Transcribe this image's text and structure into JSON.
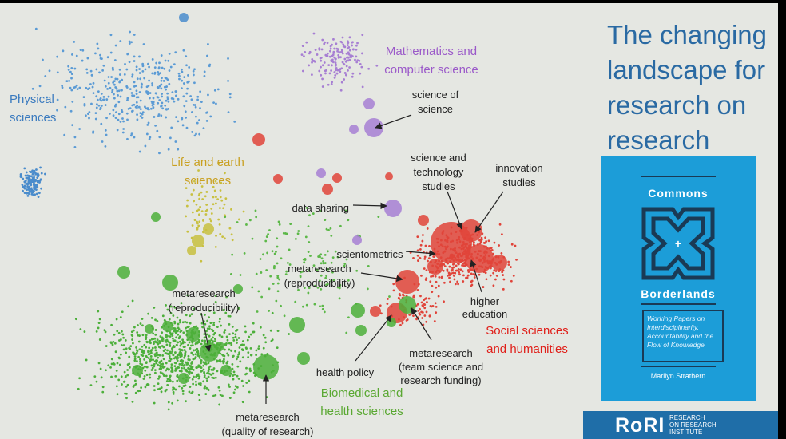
{
  "slide_title": "The changing landscape for research on research",
  "clusters": [
    {
      "label": [
        "Physical",
        "sciences"
      ]
    },
    {
      "label": [
        "Mathematics and",
        "computer science"
      ]
    },
    {
      "label": [
        "Life and earth",
        "sciences"
      ]
    },
    {
      "label": [
        "Social sciences",
        "and humanities"
      ]
    },
    {
      "label": [
        "Biomedical and",
        "health sciences"
      ]
    }
  ],
  "annotations": [
    {
      "label": [
        "science of",
        "science"
      ]
    },
    {
      "label": [
        "science and",
        "technology",
        "studies"
      ]
    },
    {
      "label": [
        "innovation",
        "studies"
      ]
    },
    {
      "label": [
        "data sharing"
      ]
    },
    {
      "label": [
        "scientometrics"
      ]
    },
    {
      "label": [
        "metaresearch",
        "(reproducibility)"
      ]
    },
    {
      "label": [
        "higher",
        "education"
      ]
    },
    {
      "label": [
        "metaresearch",
        "(reproducibility)"
      ]
    },
    {
      "label": [
        "metaresearch",
        "(team science and",
        "research funding)"
      ]
    },
    {
      "label": [
        "health policy"
      ]
    },
    {
      "label": [
        "metaresearch",
        "(quality of research)"
      ]
    }
  ],
  "book": {
    "title_top": "Commons",
    "plus": "+",
    "title_bottom": "Borderlands",
    "subtitle": "Working Papers on Interdisciplinarity, Accountability and the Flow of Knowledge",
    "author": "Marilyn Strathern"
  },
  "logo": {
    "mark": "RoRI",
    "text": [
      "RESEARCH",
      "ON RESEARCH",
      "INSTITUTE"
    ]
  }
}
